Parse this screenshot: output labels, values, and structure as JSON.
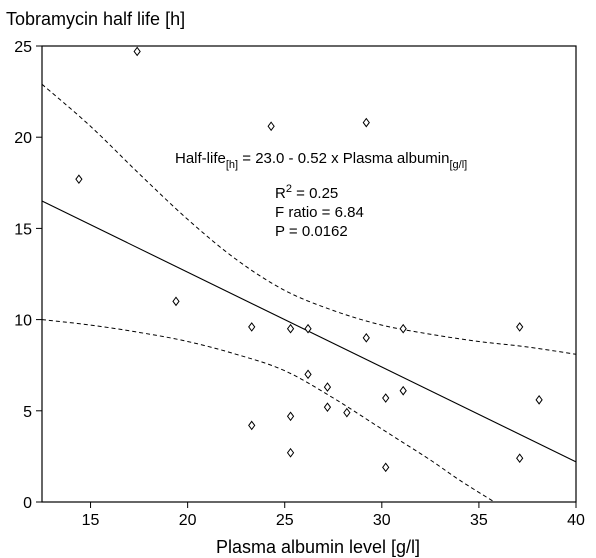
{
  "chart_data": {
    "type": "scatter",
    "title": "",
    "xlabel": "Plasma albumin level [g/l]",
    "ylabel": "Tobramycin half life [h]",
    "xlim": [
      12.5,
      40
    ],
    "ylim": [
      0,
      25
    ],
    "xticks": [
      15,
      20,
      25,
      30,
      35,
      40
    ],
    "yticks": [
      0,
      5,
      10,
      15,
      20,
      25
    ],
    "grid": false,
    "points": [
      {
        "x": 14.4,
        "y": 17.7
      },
      {
        "x": 17.4,
        "y": 24.7
      },
      {
        "x": 19.4,
        "y": 11.0
      },
      {
        "x": 23.3,
        "y": 9.6
      },
      {
        "x": 23.3,
        "y": 4.2
      },
      {
        "x": 24.3,
        "y": 20.6
      },
      {
        "x": 25.3,
        "y": 9.5
      },
      {
        "x": 25.3,
        "y": 4.7
      },
      {
        "x": 25.3,
        "y": 2.7
      },
      {
        "x": 26.2,
        "y": 9.5
      },
      {
        "x": 26.2,
        "y": 7.0
      },
      {
        "x": 27.2,
        "y": 6.3
      },
      {
        "x": 27.2,
        "y": 5.2
      },
      {
        "x": 28.2,
        "y": 4.9
      },
      {
        "x": 29.2,
        "y": 20.8
      },
      {
        "x": 29.2,
        "y": 9.0
      },
      {
        "x": 30.2,
        "y": 5.7
      },
      {
        "x": 30.2,
        "y": 1.9
      },
      {
        "x": 31.1,
        "y": 9.5
      },
      {
        "x": 31.1,
        "y": 6.1
      },
      {
        "x": 37.1,
        "y": 9.6
      },
      {
        "x": 37.1,
        "y": 2.4
      },
      {
        "x": 38.1,
        "y": 5.6
      }
    ],
    "regression": {
      "intercept": 23.0,
      "slope": -0.52
    },
    "confidence_upper": [
      {
        "x": 12.5,
        "y": 22.9
      },
      {
        "x": 15,
        "y": 20.6
      },
      {
        "x": 17.5,
        "y": 18.0
      },
      {
        "x": 20,
        "y": 15.5
      },
      {
        "x": 22.5,
        "y": 13.3
      },
      {
        "x": 25,
        "y": 11.6
      },
      {
        "x": 27.5,
        "y": 10.5
      },
      {
        "x": 30,
        "y": 9.7
      },
      {
        "x": 32.5,
        "y": 9.2
      },
      {
        "x": 35,
        "y": 8.8
      },
      {
        "x": 37.5,
        "y": 8.5
      },
      {
        "x": 40,
        "y": 8.1
      }
    ],
    "confidence_lower": [
      {
        "x": 12.5,
        "y": 10.0
      },
      {
        "x": 15,
        "y": 9.7
      },
      {
        "x": 17.5,
        "y": 9.3
      },
      {
        "x": 20,
        "y": 8.8
      },
      {
        "x": 22.5,
        "y": 8.1
      },
      {
        "x": 25,
        "y": 7.2
      },
      {
        "x": 27.5,
        "y": 5.7
      },
      {
        "x": 30,
        "y": 4.0
      },
      {
        "x": 32.5,
        "y": 2.3
      },
      {
        "x": 34,
        "y": 1.2
      },
      {
        "x": 35.8,
        "y": 0.0
      }
    ],
    "annotations": {
      "equation_prefix": "Half-life",
      "equation_sub1": "[h]",
      "equation_middle": " = 23.0 - 0.52 x Plasma albumin",
      "equation_sub2": "[g/l]",
      "r2_base": "R",
      "r2_sup": "2",
      "r2_value": " = 0.25",
      "f_ratio": "F ratio = 6.84",
      "p_value": "P = 0.0162"
    }
  }
}
